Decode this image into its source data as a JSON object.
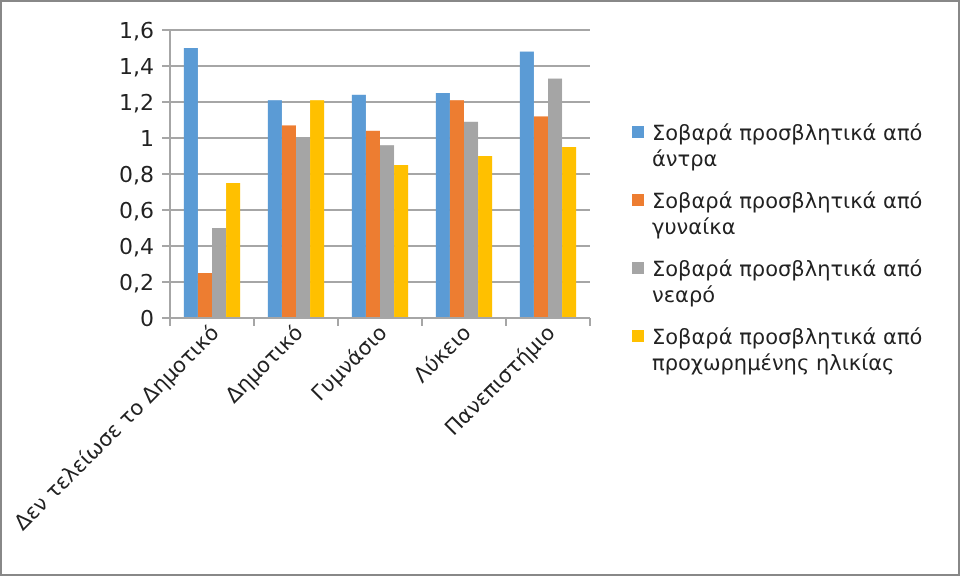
{
  "chart_data": {
    "type": "bar",
    "categories": [
      "Δεν τελείωσε το Δημοτικό",
      "Δημοτικό",
      "Γυμνάσιο",
      "Λύκειο",
      "Πανεπιστήμιο"
    ],
    "series": [
      {
        "name": "Σοβαρά προσβλητικά από άντρα",
        "color": "#5b9bd5",
        "values": [
          1.5,
          1.21,
          1.24,
          1.25,
          1.48
        ]
      },
      {
        "name": "Σοβαρά προσβλητικά από γυναίκα",
        "color": "#ed7d31",
        "values": [
          0.25,
          1.07,
          1.04,
          1.21,
          1.12
        ]
      },
      {
        "name": "Σοβαρά προσβλητικά από νεαρό",
        "color": "#a5a5a5",
        "values": [
          0.5,
          1.0,
          0.96,
          1.09,
          1.33
        ]
      },
      {
        "name": "Σοβαρά προσβλητικά από προχωρημένης ηλικίας",
        "color": "#ffc000",
        "values": [
          0.75,
          1.21,
          0.85,
          0.9,
          0.95
        ]
      }
    ],
    "ylim": [
      0,
      1.6
    ],
    "yticks": [
      0,
      {
        "value": 0.2,
        "label": "0,2"
      },
      {
        "value": 0.4,
        "label": "0,4"
      },
      {
        "value": 0.6,
        "label": "0,6"
      },
      {
        "value": 0.8,
        "label": "0,8"
      },
      1,
      {
        "value": 1.2,
        "label": "1,2"
      },
      {
        "value": 1.4,
        "label": "1,4"
      },
      {
        "value": 1.6,
        "label": "1,6"
      }
    ],
    "grid": "y",
    "legend": "right"
  }
}
